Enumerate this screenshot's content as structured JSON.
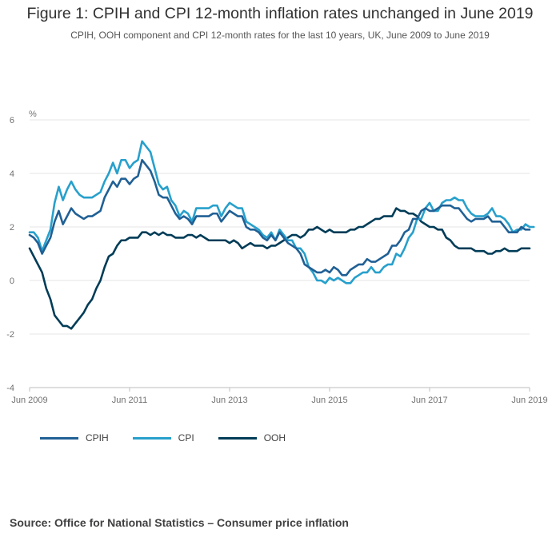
{
  "title": "Figure 1: CPIH and CPI 12-month inflation rates unchanged in June 2019",
  "subtitle": "CPIH, OOH component and CPI 12-month rates for the last 10 years, UK, June 2009 to June 2019",
  "source": "Source: Office for National Statistics – Consumer price inflation",
  "chart_data": {
    "type": "line",
    "title": "Figure 1: CPIH and CPI 12-month inflation rates unchanged in June 2019",
    "subtitle": "CPIH, OOH component and CPI 12-month rates for the last 10 years, UK, June 2009 to June 2019",
    "ylabel": "%",
    "xlabel": "",
    "ylim": [
      -4,
      6
    ],
    "yticks": [
      "6",
      "4",
      "2",
      "0",
      "-2",
      "-4"
    ],
    "xticks": [
      "Jun 2009",
      "Jun 2011",
      "Jun 2013",
      "Jun 2015",
      "Jun 2017",
      "Jun 2019"
    ],
    "x_start": "Jun 2009",
    "x_end": "Jun 2019",
    "grid": true,
    "legend_position": "bottom-left",
    "series": [
      {
        "name": "CPIH",
        "color": "#206095",
        "values": [
          1.7,
          1.6,
          1.4,
          1.0,
          1.3,
          1.6,
          2.2,
          2.6,
          2.1,
          2.4,
          2.7,
          2.5,
          2.4,
          2.3,
          2.4,
          2.4,
          2.5,
          2.6,
          3.1,
          3.4,
          3.7,
          3.5,
          3.8,
          3.8,
          3.6,
          3.8,
          3.9,
          4.5,
          4.3,
          4.1,
          3.7,
          3.2,
          3.1,
          3.1,
          2.8,
          2.5,
          2.3,
          2.4,
          2.3,
          2.1,
          2.4,
          2.4,
          2.4,
          2.4,
          2.5,
          2.5,
          2.2,
          2.4,
          2.6,
          2.5,
          2.4,
          2.4,
          2.0,
          1.9,
          1.9,
          1.8,
          1.6,
          1.5,
          1.7,
          1.5,
          1.8,
          1.6,
          1.4,
          1.3,
          1.2,
          1.0,
          0.6,
          0.5,
          0.4,
          0.3,
          0.3,
          0.4,
          0.3,
          0.5,
          0.4,
          0.2,
          0.2,
          0.4,
          0.5,
          0.6,
          0.6,
          0.8,
          0.7,
          0.7,
          0.8,
          0.9,
          1.0,
          1.3,
          1.3,
          1.5,
          1.8,
          1.9,
          2.3,
          2.3,
          2.6,
          2.7,
          2.6,
          2.6,
          2.7,
          2.8,
          2.8,
          2.8,
          2.7,
          2.7,
          2.5,
          2.3,
          2.2,
          2.3,
          2.3,
          2.3,
          2.4,
          2.2,
          2.2,
          2.2,
          2.0,
          1.8,
          1.8,
          1.8,
          2.0,
          1.9,
          1.9
        ]
      },
      {
        "name": "CPI",
        "color": "#27a0cc",
        "values": [
          1.8,
          1.8,
          1.6,
          1.1,
          1.5,
          1.9,
          2.9,
          3.5,
          3.0,
          3.4,
          3.7,
          3.4,
          3.2,
          3.1,
          3.1,
          3.1,
          3.2,
          3.3,
          3.7,
          4.0,
          4.4,
          4.0,
          4.5,
          4.5,
          4.2,
          4.4,
          4.5,
          5.2,
          5.0,
          4.8,
          4.2,
          3.6,
          3.4,
          3.5,
          3.0,
          2.8,
          2.4,
          2.6,
          2.5,
          2.2,
          2.7,
          2.7,
          2.7,
          2.7,
          2.8,
          2.8,
          2.4,
          2.7,
          2.9,
          2.8,
          2.7,
          2.7,
          2.2,
          2.1,
          2.0,
          1.9,
          1.7,
          1.6,
          1.8,
          1.5,
          1.9,
          1.7,
          1.5,
          1.5,
          1.2,
          1.2,
          1.0,
          0.5,
          0.3,
          0.0,
          0.0,
          -0.1,
          0.1,
          0.0,
          0.1,
          0.0,
          -0.1,
          -0.1,
          0.1,
          0.2,
          0.3,
          0.3,
          0.5,
          0.3,
          0.3,
          0.5,
          0.6,
          0.6,
          1.0,
          0.9,
          1.2,
          1.6,
          1.8,
          2.3,
          2.3,
          2.7,
          2.9,
          2.6,
          2.6,
          2.9,
          3.0,
          3.0,
          3.1,
          3.0,
          3.0,
          2.7,
          2.5,
          2.4,
          2.4,
          2.4,
          2.5,
          2.7,
          2.4,
          2.4,
          2.3,
          2.1,
          1.8,
          1.9,
          1.9,
          2.1,
          2.0,
          2.0
        ]
      },
      {
        "name": "OOH",
        "color": "#003c57",
        "values": [
          1.2,
          0.9,
          0.6,
          0.3,
          -0.3,
          -0.7,
          -1.3,
          -1.5,
          -1.7,
          -1.7,
          -1.8,
          -1.6,
          -1.4,
          -1.2,
          -0.9,
          -0.7,
          -0.3,
          0.0,
          0.5,
          0.9,
          1.0,
          1.3,
          1.5,
          1.5,
          1.6,
          1.6,
          1.6,
          1.8,
          1.8,
          1.7,
          1.8,
          1.7,
          1.8,
          1.7,
          1.7,
          1.6,
          1.6,
          1.6,
          1.7,
          1.7,
          1.6,
          1.7,
          1.6,
          1.5,
          1.5,
          1.5,
          1.5,
          1.5,
          1.4,
          1.5,
          1.4,
          1.2,
          1.3,
          1.4,
          1.3,
          1.3,
          1.3,
          1.2,
          1.3,
          1.3,
          1.4,
          1.5,
          1.6,
          1.7,
          1.7,
          1.6,
          1.7,
          1.9,
          1.9,
          2.0,
          1.9,
          1.8,
          1.9,
          1.8,
          1.8,
          1.8,
          1.8,
          1.9,
          1.9,
          2.0,
          2.0,
          2.1,
          2.2,
          2.3,
          2.3,
          2.4,
          2.4,
          2.4,
          2.7,
          2.6,
          2.6,
          2.5,
          2.5,
          2.4,
          2.2,
          2.1,
          2.0,
          2.0,
          1.9,
          1.9,
          1.6,
          1.5,
          1.3,
          1.2,
          1.2,
          1.2,
          1.2,
          1.1,
          1.1,
          1.1,
          1.0,
          1.0,
          1.1,
          1.1,
          1.2,
          1.1,
          1.1,
          1.1,
          1.2,
          1.2,
          1.2
        ]
      }
    ]
  }
}
